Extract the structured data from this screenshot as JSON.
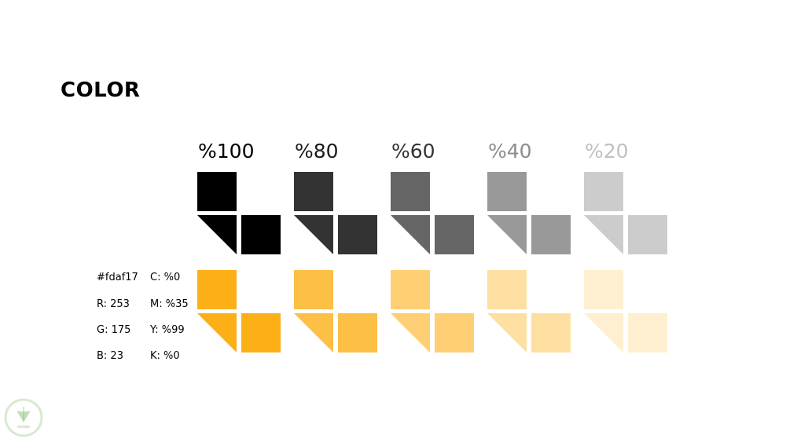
{
  "title": "COLOR",
  "percentages": [
    "%100",
    "%80",
    "%60",
    "%40",
    "%20"
  ],
  "label_colors": [
    "#000000",
    "#1a1a1a",
    "#333333",
    "#8c8c8c",
    "#bfbfbf"
  ],
  "black_shades": [
    "#000000",
    "#333333",
    "#666666",
    "#999999",
    "#cccccc"
  ],
  "yellow_shades": [
    "#fdaf17",
    "#fdbf45",
    "#fecf74",
    "#fedfa2",
    "#ffefd1"
  ],
  "color_spec": {
    "hex": "#fdaf17",
    "r": "R: 253",
    "g": "G: 175",
    "b": "B: 23",
    "c": "C: %0",
    "m": "M: %35",
    "y": "Y: %99",
    "k": "K: %0"
  },
  "watermark": {
    "icon": "leaf-shield-logo-icon",
    "ring_color": "#d7ead0",
    "leaf_color": "#8ec27e"
  }
}
